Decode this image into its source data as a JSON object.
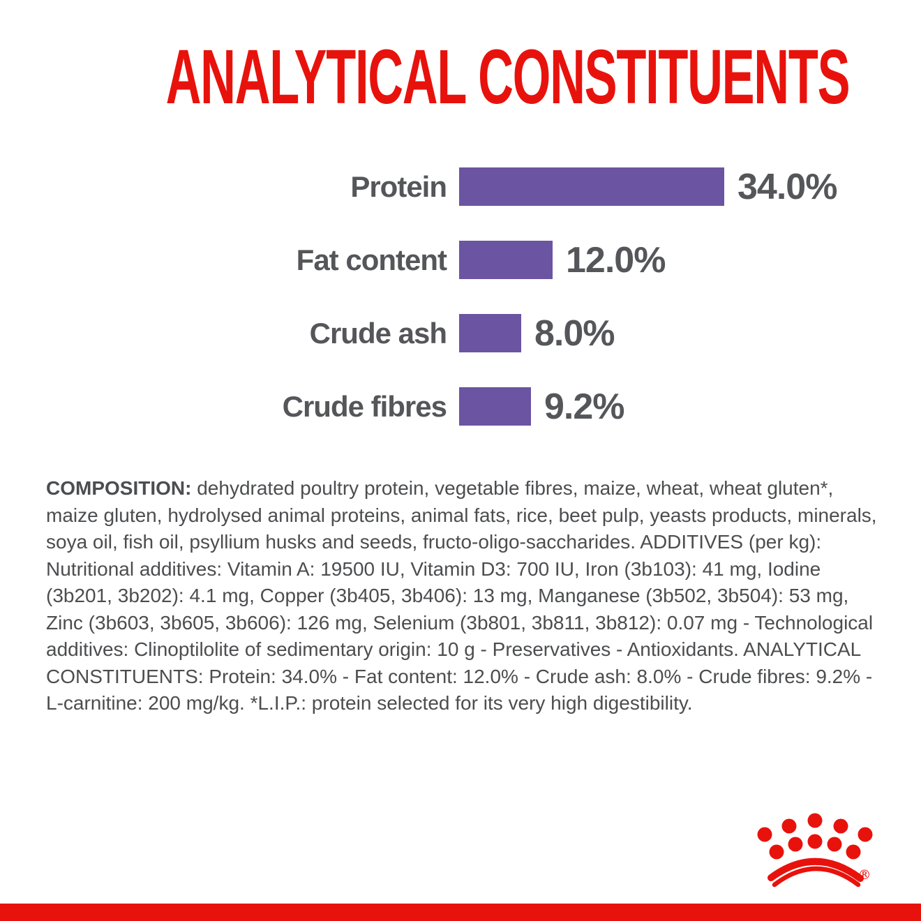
{
  "chart_data": {
    "type": "bar",
    "orientation": "horizontal",
    "title": "ANALYTICAL CONSTITUENTS",
    "categories": [
      "Protein",
      "Fat content",
      "Crude ash",
      "Crude fibres"
    ],
    "values": [
      34.0,
      12.0,
      8.0,
      9.2
    ],
    "value_labels": [
      "34.0%",
      "12.0%",
      "8.0%",
      "9.2%"
    ],
    "unit": "%",
    "xlim": [
      0,
      34
    ],
    "grid": false,
    "legend": "none",
    "bar_color": "#6B54A1",
    "label_position": "left-of-bar",
    "value_label_position": "right-of-bar"
  },
  "composition": {
    "label": "COMPOSITION:",
    "text": "dehydrated poultry protein, vegetable fibres, maize, wheat, wheat gluten*, maize gluten, hydrolysed animal proteins, animal fats, rice, beet pulp, yeasts products, minerals, soya oil, fish oil, psyllium husks and seeds, fructo-oligo-saccharides. ADDITIVES (per kg): Nutritional additives: Vitamin A: 19500 IU, Vitamin D3: 700 IU, Iron (3b103): 41 mg, Iodine (3b201, 3b202): 4.1 mg, Copper (3b405, 3b406): 13 mg, Manganese (3b502, 3b504): 53 mg, Zinc (3b603, 3b605, 3b606): 126 mg, Selenium (3b801, 3b811, 3b812): 0.07 mg - Technological additives: Clinoptilolite of sedimentary origin: 10 g - Preservatives - Antioxidants. ANALYTICAL CONSTITUENTS: Protein: 34.0% - Fat content: 12.0% - Crude ash: 8.0% - Crude fibres: 9.2% - L-carnitine: 200 mg/kg. *L.I.P.: protein selected for its very high digestibility."
  },
  "logo": {
    "name": "royal-canin-crown",
    "registered_mark": "®"
  },
  "colors": {
    "brand_red": "#E8120D",
    "bar_purple": "#6B54A1",
    "text_gray": "#55565A",
    "body_gray": "#4C4D4F"
  }
}
